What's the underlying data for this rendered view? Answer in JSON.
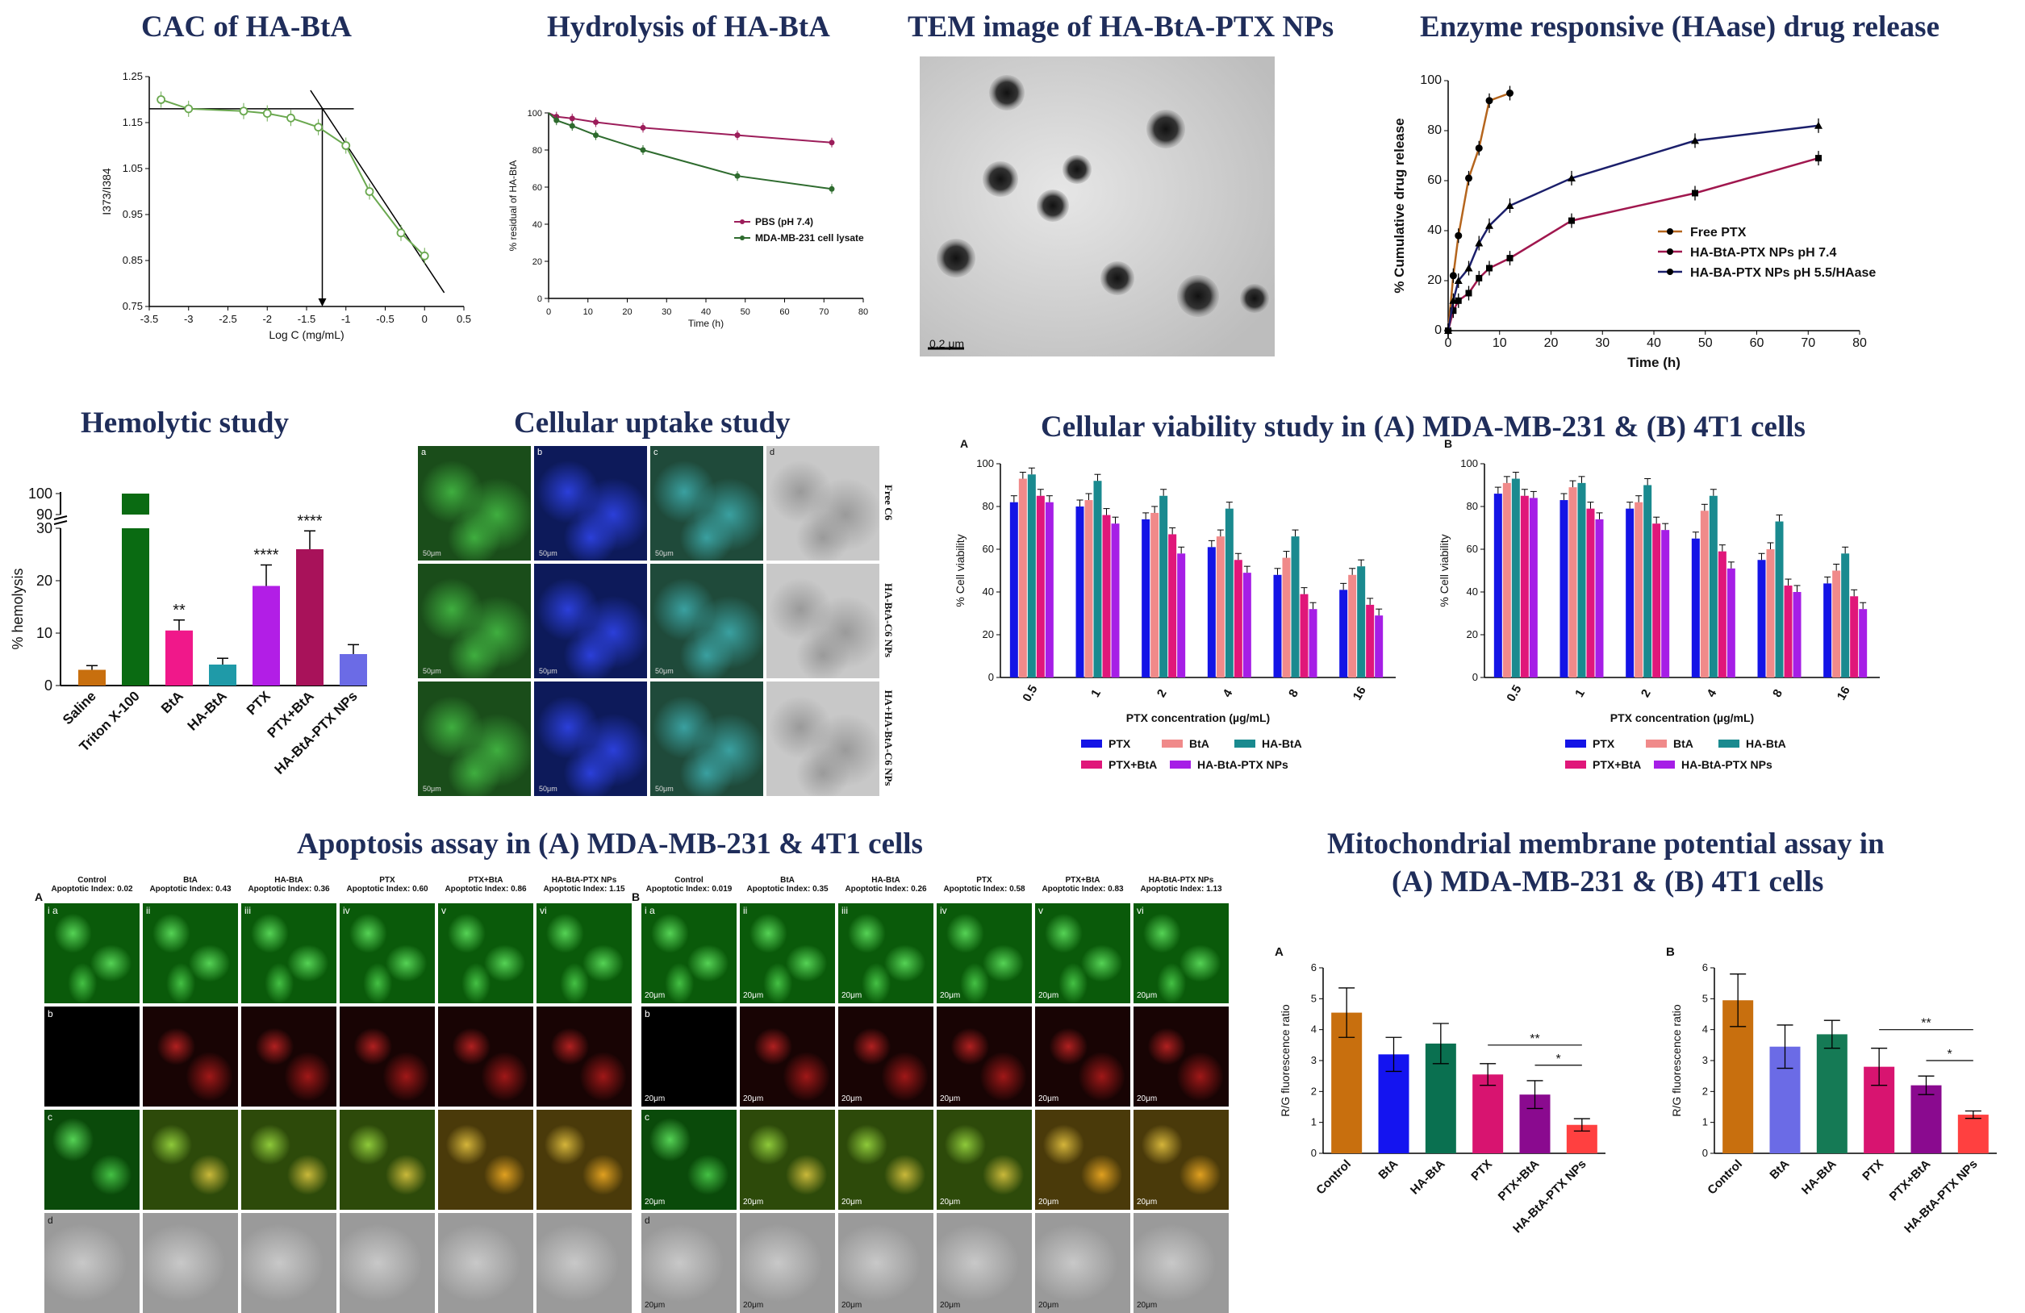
{
  "titles": {
    "cac": "CAC of HA-BtA",
    "hydrolysis": "Hydrolysis of HA-BtA",
    "tem": "TEM image of HA-BtA-PTX NPs",
    "release": "Enzyme responsive (HAase) drug release",
    "hemolytic": "Hemolytic study",
    "uptake": "Cellular uptake study",
    "viability": "Cellular viability study in (A) MDA-MB-231 & (B) 4T1 cells",
    "apoptosis": "Apoptosis assay in (A) MDA-MB-231 & 4T1 cells",
    "mmp_line1": "Mitochondrial membrane potential assay in",
    "mmp_line2": "(A) MDA-MB-231 & (B) 4T1 cells"
  },
  "colors": {
    "title": "#1f2d5a",
    "cac": "#6aa84f",
    "pbs": "#9c1d5a",
    "lysate": "#2e6b2e",
    "free_ptx": "#b5651d",
    "ha_ptx_74": "#a0174e",
    "ha_ptx_55": "#1b1f6b",
    "via_ptx": "#1414e6",
    "via_bta": "#f08a8a",
    "via_habta": "#1a8a8f",
    "via_ptxbta": "#e0177a",
    "via_habtaptx": "#a61ee6"
  },
  "tem": {
    "scale_bar": "0.2 μm"
  },
  "uptake": {
    "col_labels": [
      "a",
      "b",
      "c",
      "d"
    ],
    "row_labels": [
      "Free C6",
      "HA-BtA-C6 NPs",
      "HA+HA-BtA-C6 NPs"
    ],
    "scale": "50μm"
  },
  "apoptosis": {
    "panel_a": "A",
    "panel_b": "B",
    "groups_a": [
      {
        "name": "Control",
        "index": "Apoptotic Index: 0.02"
      },
      {
        "name": "BtA",
        "index": "Apoptotic Index: 0.43"
      },
      {
        "name": "HA-BtA",
        "index": "Apoptotic Index: 0.36"
      },
      {
        "name": "PTX",
        "index": "Apoptotic Index: 0.60"
      },
      {
        "name": "PTX+BtA",
        "index": "Apoptotic Index: 0.86"
      },
      {
        "name": "HA-BtA-PTX NPs",
        "index": "Apoptotic Index: 1.15"
      }
    ],
    "groups_b": [
      {
        "name": "Control",
        "index": "Apoptotic Index: 0.019"
      },
      {
        "name": "BtA",
        "index": "Apoptotic Index: 0.35"
      },
      {
        "name": "HA-BtA",
        "index": "Apoptotic Index: 0.26"
      },
      {
        "name": "PTX",
        "index": "Apoptotic Index: 0.58"
      },
      {
        "name": "PTX+BtA",
        "index": "Apoptotic Index: 0.83"
      },
      {
        "name": "HA-BtA-PTX NPs",
        "index": "Apoptotic Index: 1.13"
      }
    ],
    "col_numerals": [
      "i a",
      "ii",
      "iii",
      "iv",
      "v",
      "vi"
    ],
    "row_letters": [
      "b",
      "c",
      "d"
    ],
    "scale_b": "20μm"
  },
  "chart_data": [
    {
      "id": "cac",
      "type": "line",
      "xlabel": "Log C (mg/mL)",
      "ylabel": "I373/I384",
      "xlim": [
        -3.5,
        0.5
      ],
      "ylim": [
        0.75,
        1.25
      ],
      "xticks": [
        "-3.5",
        "-3",
        "-2.5",
        "-2",
        "-1.5",
        "-1",
        "-0.5",
        "0",
        "0.5"
      ],
      "yticks": [
        "0.75",
        "0.85",
        "0.95",
        "1.05",
        "1.15",
        "1.25"
      ],
      "x": [
        -3.35,
        -3.0,
        -2.3,
        -2.0,
        -1.7,
        -1.35,
        -1.0,
        -0.7,
        -0.3,
        0.0
      ],
      "y": [
        1.2,
        1.18,
        1.175,
        1.17,
        1.16,
        1.14,
        1.1,
        1.0,
        0.91,
        0.86
      ]
    },
    {
      "id": "hydrolysis",
      "type": "line",
      "xlabel": "Time (h)",
      "ylabel": "% residual of HA-BtA",
      "xlim": [
        0,
        80
      ],
      "ylim": [
        0,
        100
      ],
      "xticks": [
        "0",
        "10",
        "20",
        "30",
        "40",
        "50",
        "60",
        "70",
        "80"
      ],
      "yticks": [
        "0",
        "20",
        "40",
        "60",
        "80",
        "100"
      ],
      "x": [
        2,
        6,
        12,
        24,
        48,
        72
      ],
      "series": [
        {
          "name": "PBS (pH 7.4)",
          "values": [
            98,
            97,
            95,
            92,
            88,
            84
          ]
        },
        {
          "name": "MDA-MB-231 cell lysate",
          "values": [
            96,
            93,
            88,
            80,
            66,
            59
          ]
        }
      ]
    },
    {
      "id": "release",
      "type": "line",
      "xlabel": "Time (h)",
      "ylabel": "% Cumulative drug release",
      "xlim": [
        0,
        80
      ],
      "ylim": [
        0,
        100
      ],
      "xticks": [
        "0",
        "10",
        "20",
        "30",
        "40",
        "50",
        "60",
        "70",
        "80"
      ],
      "yticks": [
        "0",
        "20",
        "40",
        "60",
        "80",
        "100"
      ],
      "series": [
        {
          "name": "Free PTX",
          "x": [
            0,
            1,
            2,
            4,
            6,
            8,
            12
          ],
          "values": [
            0,
            22,
            38,
            61,
            73,
            92,
            95
          ]
        },
        {
          "name": "HA-BtA-PTX NPs pH 7.4",
          "x": [
            0,
            1,
            2,
            4,
            6,
            8,
            12,
            24,
            48,
            72
          ],
          "values": [
            0,
            8,
            12,
            15,
            21,
            25,
            29,
            44,
            55,
            69
          ]
        },
        {
          "name": "HA-BA-PTX NPs pH 5.5/HAase",
          "x": [
            0,
            1,
            2,
            4,
            6,
            8,
            12,
            24,
            48,
            72
          ],
          "values": [
            0,
            12,
            20,
            25,
            35,
            42,
            50,
            61,
            76,
            82
          ]
        }
      ]
    },
    {
      "id": "hemolytic",
      "type": "bar",
      "ylabel": "% hemolysis",
      "yticks": [
        "0",
        "10",
        "20",
        "30",
        "90",
        "100"
      ],
      "categories": [
        "Saline",
        "Triton X-100",
        "BtA",
        "HA-BtA",
        "PTX",
        "PTX+BtA",
        "HA-BtA-PTX NPs"
      ],
      "values": [
        3,
        100,
        10.5,
        4,
        19,
        26,
        6
      ],
      "errors": [
        0.8,
        0,
        2,
        1.2,
        4,
        3.5,
        1.8
      ],
      "annotations": [
        "",
        "",
        "**",
        "",
        "****",
        "****",
        ""
      ],
      "colors": [
        "#c86f0e",
        "#0a6b12",
        "#f0188a",
        "#1f9aa8",
        "#b21ee6",
        "#a8125a",
        "#6b6be6"
      ]
    },
    {
      "id": "viability_a",
      "type": "bar",
      "panel": "A",
      "xlabel": "PTX concentration (µg/mL)",
      "ylabel": "% Cell viability",
      "ylim": [
        0,
        100
      ],
      "yticks": [
        "0",
        "20",
        "40",
        "60",
        "80",
        "100"
      ],
      "categories": [
        "0.5",
        "1",
        "2",
        "4",
        "8",
        "16"
      ],
      "series": [
        {
          "name": "PTX",
          "values": [
            82,
            80,
            74,
            61,
            48,
            41
          ]
        },
        {
          "name": "BtA",
          "values": [
            93,
            83,
            77,
            66,
            56,
            48
          ]
        },
        {
          "name": "HA-BtA",
          "values": [
            95,
            92,
            85,
            79,
            66,
            52
          ]
        },
        {
          "name": "PTX+BtA",
          "values": [
            85,
            76,
            67,
            55,
            39,
            34
          ]
        },
        {
          "name": "HA-BtA-PTX NPs",
          "values": [
            82,
            72,
            58,
            49,
            32,
            29
          ]
        }
      ]
    },
    {
      "id": "viability_b",
      "type": "bar",
      "panel": "B",
      "xlabel": "PTX concentration (µg/mL)",
      "ylabel": "% Cell viability",
      "ylim": [
        0,
        100
      ],
      "yticks": [
        "0",
        "20",
        "40",
        "60",
        "80",
        "100"
      ],
      "categories": [
        "0.5",
        "1",
        "2",
        "4",
        "8",
        "16"
      ],
      "series": [
        {
          "name": "PTX",
          "values": [
            86,
            83,
            79,
            65,
            55,
            44
          ]
        },
        {
          "name": "BtA",
          "values": [
            91,
            89,
            82,
            78,
            60,
            50
          ]
        },
        {
          "name": "HA-BtA",
          "values": [
            93,
            91,
            90,
            85,
            73,
            58
          ]
        },
        {
          "name": "PTX+BtA",
          "values": [
            85,
            79,
            72,
            59,
            43,
            38
          ]
        },
        {
          "name": "HA-BtA-PTX NPs",
          "values": [
            84,
            74,
            69,
            51,
            40,
            32
          ]
        }
      ]
    },
    {
      "id": "mmp_a",
      "type": "bar",
      "panel": "A",
      "ylabel": "R/G fluorescence ratio",
      "ylim": [
        0,
        6
      ],
      "yticks": [
        "0",
        "1",
        "2",
        "3",
        "4",
        "5",
        "6"
      ],
      "categories": [
        "Control",
        "BtA",
        "HA-BtA",
        "PTX",
        "PTX+BtA",
        "HA-BtA-PTX NPs"
      ],
      "values": [
        4.55,
        3.2,
        3.55,
        2.55,
        1.9,
        0.92
      ],
      "errors": [
        0.8,
        0.55,
        0.65,
        0.35,
        0.45,
        0.2
      ],
      "colors": [
        "#c86f0e",
        "#1414f0",
        "#0a7050",
        "#d81470",
        "#8a0a8f",
        "#ff4040"
      ],
      "sig": [
        "**",
        "*"
      ]
    },
    {
      "id": "mmp_b",
      "type": "bar",
      "panel": "B",
      "ylabel": "R/G fluorescence ratio",
      "ylim": [
        0,
        6
      ],
      "yticks": [
        "0",
        "1",
        "2",
        "3",
        "4",
        "5",
        "6"
      ],
      "categories": [
        "Control",
        "BtA",
        "HA-BtA",
        "PTX",
        "PTX+BtA",
        "HA-BtA-PTX NPs"
      ],
      "values": [
        4.95,
        3.45,
        3.85,
        2.8,
        2.2,
        1.25
      ],
      "errors": [
        0.85,
        0.7,
        0.45,
        0.6,
        0.3,
        0.12
      ],
      "colors": [
        "#c86f0e",
        "#6b6be6",
        "#157a55",
        "#d81470",
        "#8a0a8f",
        "#ff4040"
      ],
      "sig": [
        "**",
        "*"
      ]
    }
  ]
}
